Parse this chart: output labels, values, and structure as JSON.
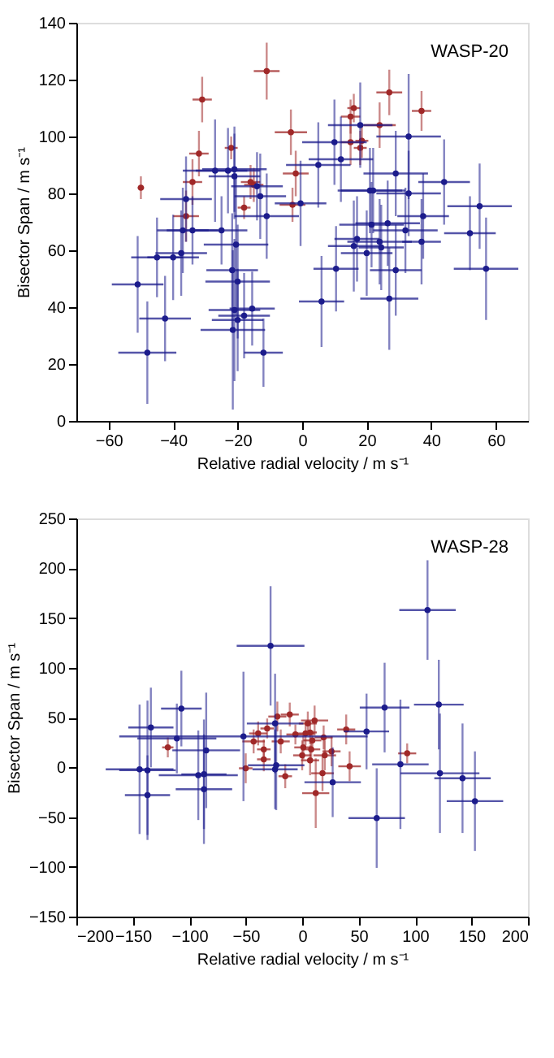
{
  "chart_data": [
    {
      "type": "scatter",
      "xlabel": "Relative radial velocity / m s⁻¹",
      "ylabel": "Bisector Span / m s⁻¹",
      "annotations": [
        "WASP-20"
      ],
      "xlim": [
        -70,
        70
      ],
      "ylim": [
        0,
        140
      ],
      "xticks": [
        -60,
        -40,
        -20,
        0,
        20,
        40,
        60
      ],
      "yticks": [
        0,
        20,
        40,
        60,
        80,
        100,
        120,
        140
      ],
      "grid": false,
      "marker": "circle",
      "series": [
        {
          "color": "#a02828",
          "x": [
            -50,
            -31,
            -32,
            -34,
            -36,
            -22,
            -16,
            -15,
            -18,
            -11,
            -3.5,
            -2,
            -3,
            15,
            16,
            15,
            18,
            18.5,
            24,
            27,
            37
          ],
          "values": [
            82,
            113,
            94,
            84,
            72,
            96,
            84,
            83,
            75,
            123,
            101.5,
            87,
            76,
            107,
            110,
            98,
            96,
            98.5,
            104,
            115.5,
            109
          ],
          "errors": [
            4,
            8,
            8,
            8,
            9,
            4,
            6,
            6,
            4,
            10,
            8,
            8,
            6,
            6,
            5,
            8,
            6,
            6,
            8,
            8,
            7
          ],
          "xerrors": [
            1,
            3,
            3,
            3,
            4,
            2,
            3,
            3,
            2,
            4,
            5,
            4,
            4,
            3,
            2,
            3,
            2,
            2,
            5,
            4,
            3
          ]
        },
        {
          "color": "#1c1c8c",
          "x": [
            18,
            10,
            5,
            12,
            -27,
            -23,
            -21,
            -21,
            -14,
            -13,
            -11,
            -0.5,
            21,
            22,
            29,
            33,
            33,
            44,
            37.5,
            55,
            -36,
            -37,
            -34,
            -25,
            21.5,
            26.5,
            32,
            52,
            -45,
            -40,
            -37.5,
            -51,
            -42.5,
            -48,
            -20.5,
            -21.7,
            -20,
            -21,
            -20,
            -21.5,
            -18,
            -15.5,
            -12,
            6,
            10.5,
            16,
            17,
            20,
            24,
            24.5,
            29,
            27,
            37,
            57
          ],
          "values": [
            104,
            98,
            90,
            92,
            88,
            88,
            88.5,
            86,
            82.5,
            79,
            72,
            76.5,
            81,
            81,
            87,
            100,
            80,
            84,
            72,
            75.5,
            78,
            67,
            67,
            67,
            69,
            69.5,
            67,
            66,
            57.5,
            57.5,
            59,
            48,
            36,
            24,
            62,
            53,
            49,
            39,
            35.5,
            32,
            37,
            39.5,
            24,
            42,
            53.5,
            61.5,
            64,
            59,
            63,
            61,
            53,
            43,
            63,
            53.5
          ],
          "errors": [
            15,
            15,
            15,
            15,
            18,
            15,
            15,
            15,
            12,
            15,
            15,
            15,
            15,
            15,
            15,
            22,
            15,
            15,
            15,
            15,
            15,
            15,
            12,
            12,
            15,
            15,
            15,
            13,
            14,
            15,
            15,
            17,
            15,
            18,
            25,
            20,
            20,
            25,
            18,
            28,
            15,
            13,
            12,
            16,
            15,
            16,
            15,
            15,
            15,
            15,
            16,
            18,
            15,
            18
          ],
          "xerrors": [
            10,
            10,
            10,
            10,
            10,
            10,
            10,
            8,
            8,
            8,
            10,
            8,
            10,
            10,
            10,
            10,
            10,
            8,
            8,
            10,
            8,
            8,
            8,
            8,
            10,
            10,
            10,
            8,
            8,
            8,
            8,
            8,
            8,
            9,
            10,
            8,
            10,
            8,
            8,
            10,
            8,
            7,
            6,
            7,
            7,
            8,
            7,
            8,
            10,
            7,
            8,
            9,
            6,
            10
          ]
        }
      ]
    },
    {
      "type": "scatter",
      "xlabel": "Relative radial velocity / m s⁻¹",
      "ylabel": "Bisector Span / m s⁻¹",
      "annotations": [
        "WASP-28"
      ],
      "xlim": [
        -200,
        200
      ],
      "ylim": [
        -150,
        250
      ],
      "xticks": [
        -200,
        -150,
        -100,
        -50,
        0,
        50,
        100,
        150,
        200
      ],
      "yticks": [
        -150,
        -100,
        -50,
        0,
        50,
        100,
        150,
        200,
        250
      ],
      "grid": false,
      "marker": "circle",
      "series": [
        {
          "color": "#a02828",
          "x": [
            -119,
            -50,
            -39,
            -34,
            -34,
            -31,
            -19,
            -15,
            -22,
            -11,
            0,
            1,
            3,
            7,
            9,
            8,
            7,
            11,
            19,
            20,
            18,
            12,
            26,
            39,
            42,
            93,
            -43,
            -6,
            5
          ],
          "values": [
            20,
            -1,
            34,
            8,
            18,
            39,
            26,
            -9,
            51,
            53,
            12,
            20,
            34,
            35,
            27,
            18,
            7,
            47,
            30,
            12,
            -6,
            -26,
            16,
            38,
            1,
            14,
            26,
            33,
            44
          ],
          "errors": [
            10,
            15,
            12,
            12,
            10,
            10,
            12,
            12,
            15,
            12,
            15,
            12,
            12,
            12,
            10,
            12,
            15,
            15,
            12,
            15,
            18,
            35,
            15,
            15,
            15,
            10,
            12,
            10,
            12
          ],
          "xerrors": [
            5,
            6,
            8,
            6,
            6,
            6,
            8,
            6,
            8,
            8,
            8,
            8,
            8,
            6,
            8,
            8,
            8,
            12,
            8,
            10,
            10,
            12,
            8,
            8,
            10,
            8,
            10,
            8,
            8
          ]
        },
        {
          "color": "#1c1c8c",
          "x": [
            -28,
            111,
            121,
            73,
            57,
            -107,
            -134,
            -111,
            -52,
            -24,
            -85,
            -144,
            -137,
            -137,
            -92,
            -87,
            -87,
            -24,
            -23,
            27,
            66,
            87,
            122,
            142,
            153
          ],
          "values": [
            122,
            158,
            63,
            60,
            36,
            59,
            40,
            29,
            31,
            44,
            17,
            -2,
            -3,
            -28,
            -8,
            -7,
            -22,
            -2,
            2,
            -15,
            -51,
            3,
            -6,
            -11,
            -34
          ],
          "errors": [
            60,
            50,
            45,
            45,
            38,
            38,
            40,
            35,
            65,
            50,
            58,
            65,
            70,
            40,
            45,
            55,
            55,
            40,
            45,
            35,
            50,
            65,
            60,
            55,
            50
          ],
          "xerrors": [
            30,
            25,
            22,
            22,
            20,
            18,
            20,
            35,
            110,
            25,
            30,
            30,
            25,
            20,
            35,
            20,
            25,
            20,
            25,
            25,
            25,
            25,
            35,
            25,
            25
          ]
        }
      ]
    }
  ]
}
